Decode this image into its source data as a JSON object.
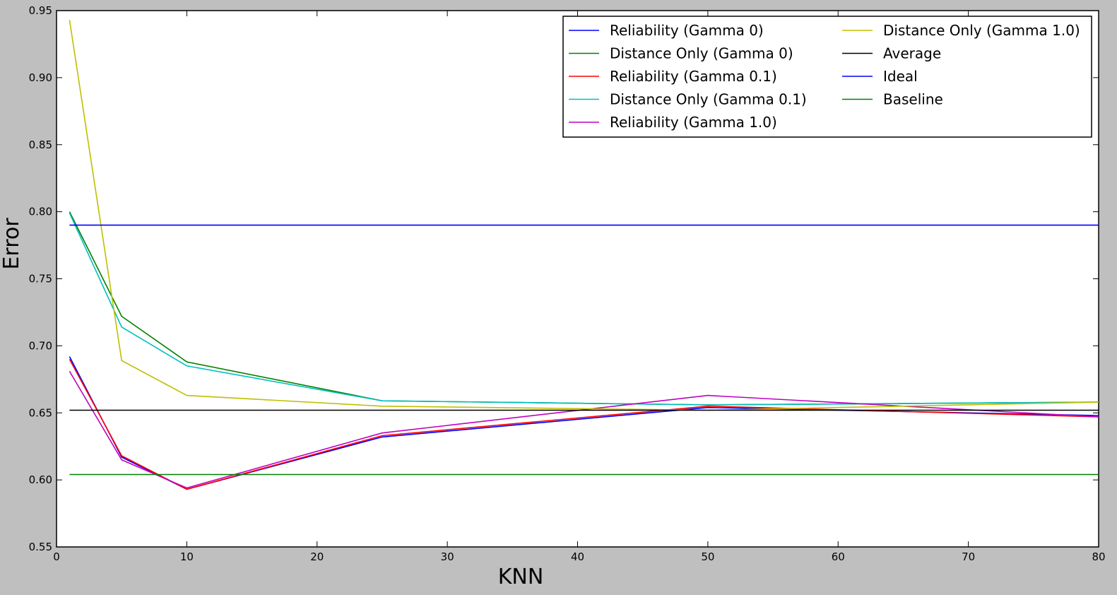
{
  "chart_data": {
    "type": "line",
    "title": "",
    "xlabel": "KNN",
    "ylabel": "Error",
    "xlim": [
      0,
      80
    ],
    "ylim": [
      0.55,
      0.95
    ],
    "xticks": [
      0,
      10,
      20,
      30,
      40,
      50,
      60,
      70,
      80
    ],
    "xtick_labels": [
      "0",
      "10",
      "20",
      "30",
      "40",
      "50",
      "60",
      "70",
      "80"
    ],
    "yticks": [
      0.55,
      0.6,
      0.65,
      0.7,
      0.75,
      0.8,
      0.85,
      0.9,
      0.95
    ],
    "ytick_labels": [
      "0.55",
      "0.60",
      "0.65",
      "0.70",
      "0.75",
      "0.80",
      "0.85",
      "0.90",
      "0.95"
    ],
    "grid": false,
    "legend_position": "top-right",
    "legend_columns": 2,
    "background": "#bfbfbf",
    "plot_background": "#ffffff",
    "series": [
      {
        "name": "Reliability (Gamma 0)",
        "color": "#0000ff",
        "x": [
          1,
          5,
          10,
          25,
          50,
          80
        ],
        "values": [
          0.692,
          0.617,
          0.593,
          0.632,
          0.654,
          0.648
        ]
      },
      {
        "name": "Distance Only (Gamma 0)",
        "color": "#008000",
        "x": [
          1,
          5,
          10,
          25,
          50,
          80
        ],
        "values": [
          0.8,
          0.722,
          0.688,
          0.659,
          0.656,
          0.658
        ]
      },
      {
        "name": "Reliability (Gamma 0.1)",
        "color": "#ff0000",
        "x": [
          1,
          5,
          10,
          25,
          50,
          80
        ],
        "values": [
          0.69,
          0.618,
          0.593,
          0.633,
          0.655,
          0.647
        ]
      },
      {
        "name": "Distance Only (Gamma 0.1)",
        "color": "#00bfbf",
        "x": [
          1,
          5,
          10,
          25,
          50,
          80
        ],
        "values": [
          0.799,
          0.714,
          0.685,
          0.659,
          0.656,
          0.658
        ]
      },
      {
        "name": "Reliability (Gamma 1.0)",
        "color": "#bf00bf",
        "x": [
          1,
          5,
          10,
          25,
          50,
          80
        ],
        "values": [
          0.681,
          0.615,
          0.594,
          0.635,
          0.663,
          0.647
        ]
      },
      {
        "name": "Distance Only (Gamma 1.0)",
        "color": "#bfbf00",
        "x": [
          1,
          5,
          10,
          25,
          50,
          80
        ],
        "values": [
          0.943,
          0.689,
          0.663,
          0.655,
          0.652,
          0.658
        ]
      },
      {
        "name": "Average",
        "color": "#000000",
        "x": [
          1,
          80
        ],
        "values": [
          0.652,
          0.652
        ]
      },
      {
        "name": "Ideal",
        "color": "#0000ff",
        "x": [
          1,
          80
        ],
        "values": [
          0.79,
          0.79
        ]
      },
      {
        "name": "Baseline",
        "color": "#008000",
        "x": [
          1,
          80
        ],
        "values": [
          0.604,
          0.604
        ]
      }
    ]
  }
}
